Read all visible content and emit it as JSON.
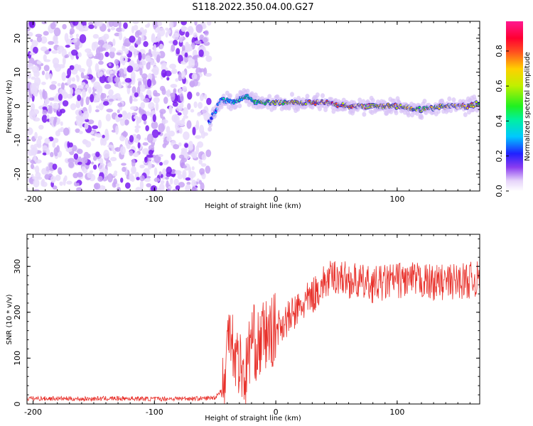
{
  "title": "S118.2022.350.04.00.G27",
  "chart_data": [
    {
      "type": "heatmap",
      "name": "spectrogram",
      "xlabel": "Height of straight line (km)",
      "ylabel": "Frequency (Hz)",
      "xlim": [
        -205,
        168
      ],
      "ylim": [
        -25,
        25
      ],
      "xticks": [
        -200,
        -100,
        0,
        100
      ],
      "yticks": [
        -20,
        -10,
        0,
        10,
        20
      ],
      "colorbar": {
        "label": "Normalized spectral amplitude",
        "range": [
          0.0,
          0.97
        ],
        "ticks": [
          "0.0",
          "0.2",
          "0.4",
          "0.6",
          "0.8"
        ],
        "colormap": "rainbow (white-purple-blue-cyan-green-yellow-red-magenta)"
      },
      "noise_region_x": [
        -205,
        -55
      ],
      "signal_trace": [
        {
          "x": -55,
          "y": -5,
          "amp": 0.3
        },
        {
          "x": -45,
          "y": 2,
          "amp": 0.4
        },
        {
          "x": -35,
          "y": 1,
          "amp": 0.45
        },
        {
          "x": -25,
          "y": 3,
          "amp": 0.5
        },
        {
          "x": -15,
          "y": 1,
          "amp": 0.55
        },
        {
          "x": 0,
          "y": 1,
          "amp": 0.7
        },
        {
          "x": 20,
          "y": 1,
          "amp": 0.75
        },
        {
          "x": 40,
          "y": 1,
          "amp": 0.85
        },
        {
          "x": 60,
          "y": 0,
          "amp": 0.8
        },
        {
          "x": 80,
          "y": 0,
          "amp": 0.75
        },
        {
          "x": 100,
          "y": 0,
          "amp": 0.8
        },
        {
          "x": 120,
          "y": -1,
          "amp": 0.7
        },
        {
          "x": 140,
          "y": 0,
          "amp": 0.75
        },
        {
          "x": 160,
          "y": 0,
          "amp": 0.8
        },
        {
          "x": 168,
          "y": 1,
          "amp": 0.7
        }
      ]
    },
    {
      "type": "line",
      "name": "snr",
      "xlabel": "Height of straight line (km)",
      "ylabel": "SNR (10 * v/v)",
      "xlim": [
        -205,
        168
      ],
      "ylim": [
        0,
        370
      ],
      "xticks": [
        -200,
        -100,
        0,
        100
      ],
      "yticks": [
        0,
        100,
        200,
        300
      ],
      "color": "#e8302a",
      "x": [
        -205,
        -180,
        -160,
        -140,
        -120,
        -100,
        -80,
        -60,
        -50,
        -42,
        -38,
        -35,
        -30,
        -25,
        -20,
        -15,
        -10,
        -5,
        0,
        10,
        20,
        30,
        40,
        50,
        60,
        70,
        80,
        90,
        100,
        110,
        120,
        130,
        140,
        150,
        160,
        168
      ],
      "y": [
        12,
        12,
        11,
        12,
        12,
        11,
        12,
        12,
        14,
        40,
        200,
        120,
        90,
        60,
        150,
        120,
        150,
        150,
        165,
        185,
        210,
        235,
        265,
        280,
        270,
        265,
        260,
        265,
        270,
        270,
        268,
        265,
        265,
        268,
        270,
        272
      ]
    }
  ]
}
